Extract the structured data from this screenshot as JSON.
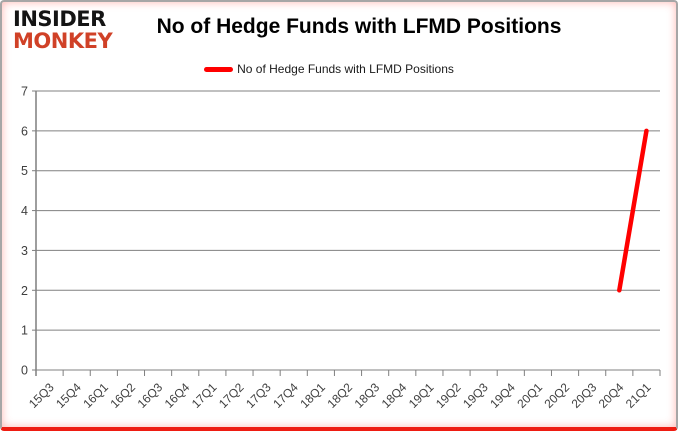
{
  "logo": {
    "line1": "INSIDER",
    "line2": "MONKEY"
  },
  "title": "No of Hedge Funds with LFMD Positions",
  "legend": {
    "label": "No of Hedge Funds with LFMD Positions"
  },
  "colors": {
    "series_red": "#ff0000",
    "logo_red": "#d04127",
    "bottom_bar_red": "#ee1c12",
    "grid_gray": "#808080",
    "axis_gray": "#7f7f7f",
    "tick_text": "#3f3f3f",
    "title_text": "#000000",
    "frame_border": "#a6a6a6"
  },
  "chart_data": {
    "type": "line",
    "title": "No of Hedge Funds with LFMD Positions",
    "xlabel": "",
    "ylabel": "",
    "ylim": [
      0,
      7
    ],
    "yticks": [
      0,
      1,
      2,
      3,
      4,
      5,
      6,
      7
    ],
    "grid": true,
    "legend_position": "top",
    "categories": [
      "15Q3",
      "15Q4",
      "16Q1",
      "16Q2",
      "16Q3",
      "16Q4",
      "17Q1",
      "17Q2",
      "17Q3",
      "17Q4",
      "18Q1",
      "18Q2",
      "18Q3",
      "18Q4",
      "19Q1",
      "19Q2",
      "19Q3",
      "19Q4",
      "20Q1",
      "20Q2",
      "20Q3",
      "20Q4",
      "21Q1"
    ],
    "series": [
      {
        "name": "No of Hedge Funds with LFMD Positions",
        "color": "#ff0000",
        "values": [
          null,
          null,
          null,
          null,
          null,
          null,
          null,
          null,
          null,
          null,
          null,
          null,
          null,
          null,
          null,
          null,
          null,
          null,
          null,
          null,
          null,
          2,
          6
        ]
      }
    ]
  }
}
